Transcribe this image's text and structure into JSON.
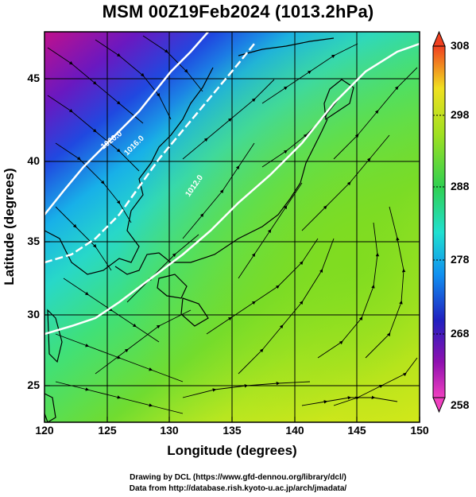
{
  "title": "MSM 00Z19Feb2024 (1013.2hPa)",
  "x_axis": {
    "label": "Longitude (degrees)",
    "ticks": [
      "120",
      "125",
      "130",
      "135",
      "140",
      "145",
      "150"
    ]
  },
  "y_axis": {
    "label": "Latitude  (degrees)",
    "ticks": [
      "25",
      "30",
      "35",
      "40",
      "45"
    ]
  },
  "colorbar": {
    "ticks": [
      "308",
      "298",
      "288",
      "278",
      "268",
      "258"
    ]
  },
  "contour_labels": [
    "1020.0",
    "1016.0",
    "1012.0"
  ],
  "credits": {
    "line1": "Drawing by DCL (https://www.gfd-dennou.org/library/dcl/)",
    "line2": "Data from http://database.rish.kyoto-u.ac.jp/arch/jmadata/"
  },
  "map_data": {
    "lon_range": [
      120,
      150
    ],
    "lat_range": [
      22.4,
      47.6
    ],
    "colorbar_range": [
      258,
      308
    ],
    "colors": {
      "cold": "#c0108c",
      "mid": "#28d8c8",
      "warm": "#f0ec18"
    }
  }
}
